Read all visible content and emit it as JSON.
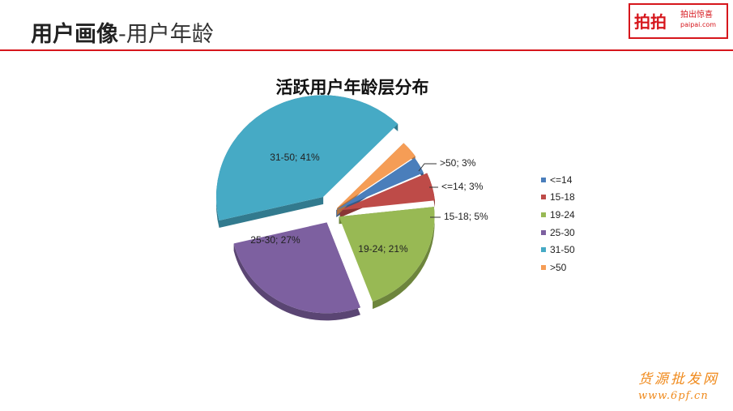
{
  "header": {
    "title_bold": "用户画像",
    "title_rest": "-用户年龄"
  },
  "logo": {
    "name": "拍拍",
    "tagline": "拍出惊喜",
    "url": "paipai.com"
  },
  "watermark": {
    "name": "货源批发网",
    "url": "www.6pf.cn"
  },
  "colors": {
    "accent_red": "#d6161c",
    "watermark_orange": "#f08a1c"
  },
  "chart_data": {
    "type": "pie",
    "title": "活跃用户年龄层分布",
    "exploded": true,
    "style": "3d",
    "legend_position": "right",
    "categories": [
      "<=14",
      "15-18",
      "19-24",
      "25-30",
      "31-50",
      ">50"
    ],
    "values": [
      3,
      5,
      21,
      27,
      41,
      3
    ],
    "data_labels": [
      "<=14; 3%",
      "15-18; 5%",
      "19-24; 21%",
      "25-30; 27%",
      "31-50; 41%",
      ">50; 3%"
    ],
    "colors": [
      "#4a7ebb",
      "#be4b48",
      "#98b954",
      "#7d60a0",
      "#46aac5",
      "#f59d56"
    ],
    "series": [
      {
        "values": [
          3,
          5,
          21,
          27,
          41,
          3
        ]
      }
    ]
  }
}
